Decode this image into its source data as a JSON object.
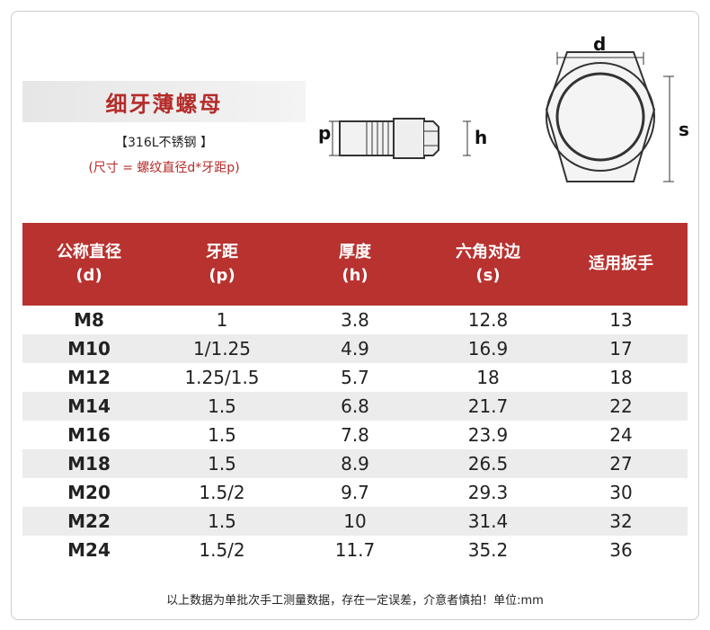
{
  "header": {
    "title": "细牙薄螺母",
    "material": "【316L不锈钢 】",
    "note": "(尺寸 = 螺纹直径d*牙距p)"
  },
  "diagram": {
    "labels": {
      "d": "d",
      "p": "p",
      "h": "h",
      "s": "s"
    }
  },
  "table": {
    "columns": [
      [
        "公称直径",
        "(d)"
      ],
      [
        "牙距",
        "(p)"
      ],
      [
        "厚度",
        "(h)"
      ],
      [
        "六角对边",
        "(s)"
      ],
      [
        "适用扳手"
      ]
    ],
    "rows": [
      [
        "M8",
        "1",
        "3.8",
        "12.8",
        "13"
      ],
      [
        "M10",
        "1/1.25",
        "4.9",
        "16.9",
        "17"
      ],
      [
        "M12",
        "1.25/1.5",
        "5.7",
        "18",
        "18"
      ],
      [
        "M14",
        "1.5",
        "6.8",
        "21.7",
        "22"
      ],
      [
        "M16",
        "1.5",
        "7.8",
        "23.9",
        "24"
      ],
      [
        "M18",
        "1.5",
        "8.9",
        "26.5",
        "27"
      ],
      [
        "M20",
        "1.5/2",
        "9.7",
        "29.3",
        "30"
      ],
      [
        "M22",
        "1.5",
        "10",
        "31.4",
        "32"
      ],
      [
        "M24",
        "1.5/2",
        "11.7",
        "35.2",
        "36"
      ]
    ]
  },
  "footer": "以上数据为单批次手工测量数据，存在一定误差，介意者慎拍！单位:mm"
}
